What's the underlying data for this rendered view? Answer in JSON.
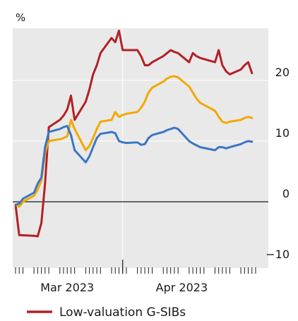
{
  "chart_data": {
    "type": "line",
    "y_unit": "%",
    "ylim": [
      -10,
      30
    ],
    "y_ticks": [
      {
        "value": 20,
        "label": "20"
      },
      {
        "value": 10,
        "label": "10"
      },
      {
        "value": 0,
        "label": "0"
      },
      {
        "value": -10,
        "label": "−10"
      }
    ],
    "x_range": [
      "2023-02-15",
      "2023-04-21"
    ],
    "x_tick_labels": [
      {
        "date": "2023-03-01",
        "label": "Mar 2023"
      },
      {
        "date": "2023-04-01",
        "label": "Apr 2023"
      }
    ],
    "x_divider_date": "2023-03-16",
    "grid": true,
    "legend_position": "bottom",
    "series": [
      {
        "name": "Low-valuation G-SIBs",
        "color": "#b32025",
        "points": [
          [
            "2023-02-15",
            -0.5
          ],
          [
            "2023-02-16",
            -5.5
          ],
          [
            "2023-02-20",
            -5.6
          ],
          [
            "2023-02-21",
            -5.7
          ],
          [
            "2023-02-22",
            -3.5
          ],
          [
            "2023-02-23",
            3.0
          ],
          [
            "2023-02-24",
            12.3
          ],
          [
            "2023-02-27",
            13.5
          ],
          [
            "2023-02-28",
            14.2
          ],
          [
            "2023-03-01",
            15.2
          ],
          [
            "2023-03-02",
            17.5
          ],
          [
            "2023-03-03",
            13.5
          ],
          [
            "2023-03-06",
            16.5
          ],
          [
            "2023-03-07",
            18.5
          ],
          [
            "2023-03-08",
            21.0
          ],
          [
            "2023-03-09",
            22.5
          ],
          [
            "2023-03-10",
            24.5
          ],
          [
            "2023-03-13",
            27.0
          ],
          [
            "2023-03-14",
            26.3
          ],
          [
            "2023-03-15",
            28.2
          ],
          [
            "2023-03-16",
            25.0
          ],
          [
            "2023-03-17",
            25.0
          ],
          [
            "2023-03-20",
            25.0
          ],
          [
            "2023-03-21",
            24.0
          ],
          [
            "2023-03-22",
            22.5
          ],
          [
            "2023-03-23",
            22.5
          ],
          [
            "2023-03-24",
            23.0
          ],
          [
            "2023-03-27",
            24.0
          ],
          [
            "2023-03-28",
            24.5
          ],
          [
            "2023-03-29",
            25.0
          ],
          [
            "2023-03-30",
            24.7
          ],
          [
            "2023-03-31",
            24.5
          ],
          [
            "2023-04-03",
            23.0
          ],
          [
            "2023-04-04",
            24.5
          ],
          [
            "2023-04-05",
            24.0
          ],
          [
            "2023-04-06",
            23.7
          ],
          [
            "2023-04-10",
            23.0
          ],
          [
            "2023-04-11",
            25.0
          ],
          [
            "2023-04-12",
            22.5
          ],
          [
            "2023-04-13",
            21.5
          ],
          [
            "2023-04-14",
            21.0
          ],
          [
            "2023-04-17",
            21.8
          ],
          [
            "2023-04-18",
            22.5
          ],
          [
            "2023-04-19",
            23.0
          ],
          [
            "2023-04-20",
            21.2
          ]
        ]
      },
      {
        "name": "",
        "color": "#f2a900",
        "points": [
          [
            "2023-02-15",
            -0.5
          ],
          [
            "2023-02-16",
            -0.8
          ],
          [
            "2023-02-17",
            0.0
          ],
          [
            "2023-02-20",
            1.0
          ],
          [
            "2023-02-21",
            2.0
          ],
          [
            "2023-02-22",
            3.5
          ],
          [
            "2023-02-23",
            8.0
          ],
          [
            "2023-02-24",
            10.0
          ],
          [
            "2023-02-27",
            10.3
          ],
          [
            "2023-02-28",
            10.5
          ],
          [
            "2023-03-01",
            10.8
          ],
          [
            "2023-03-02",
            13.5
          ],
          [
            "2023-03-03",
            12.0
          ],
          [
            "2023-03-06",
            8.5
          ],
          [
            "2023-03-07",
            9.2
          ],
          [
            "2023-03-08",
            10.5
          ],
          [
            "2023-03-09",
            12.0
          ],
          [
            "2023-03-10",
            13.2
          ],
          [
            "2023-03-13",
            13.5
          ],
          [
            "2023-03-14",
            14.8
          ],
          [
            "2023-03-15",
            14.0
          ],
          [
            "2023-03-16",
            14.3
          ],
          [
            "2023-03-17",
            14.5
          ],
          [
            "2023-03-20",
            14.8
          ],
          [
            "2023-03-21",
            15.5
          ],
          [
            "2023-03-22",
            16.5
          ],
          [
            "2023-03-23",
            18.0
          ],
          [
            "2023-03-24",
            18.8
          ],
          [
            "2023-03-27",
            19.8
          ],
          [
            "2023-03-28",
            20.3
          ],
          [
            "2023-03-29",
            20.6
          ],
          [
            "2023-03-30",
            20.7
          ],
          [
            "2023-03-31",
            20.5
          ],
          [
            "2023-04-03",
            19.0
          ],
          [
            "2023-04-04",
            18.0
          ],
          [
            "2023-04-05",
            17.0
          ],
          [
            "2023-04-06",
            16.3
          ],
          [
            "2023-04-10",
            15.0
          ],
          [
            "2023-04-11",
            14.0
          ],
          [
            "2023-04-12",
            13.2
          ],
          [
            "2023-04-13",
            13.0
          ],
          [
            "2023-04-14",
            13.2
          ],
          [
            "2023-04-17",
            13.5
          ],
          [
            "2023-04-18",
            13.8
          ],
          [
            "2023-04-19",
            14.0
          ],
          [
            "2023-04-20",
            13.8
          ]
        ]
      },
      {
        "name": "",
        "color": "#3a76c4",
        "points": [
          [
            "2023-02-15",
            -0.5
          ],
          [
            "2023-02-16",
            -0.3
          ],
          [
            "2023-02-17",
            0.5
          ],
          [
            "2023-02-20",
            1.5
          ],
          [
            "2023-02-21",
            3.0
          ],
          [
            "2023-02-22",
            4.0
          ],
          [
            "2023-02-23",
            9.0
          ],
          [
            "2023-02-24",
            11.5
          ],
          [
            "2023-02-27",
            12.0
          ],
          [
            "2023-02-28",
            12.3
          ],
          [
            "2023-03-01",
            12.5
          ],
          [
            "2023-03-02",
            11.0
          ],
          [
            "2023-03-03",
            8.5
          ],
          [
            "2023-03-06",
            6.5
          ],
          [
            "2023-03-07",
            7.5
          ],
          [
            "2023-03-08",
            9.0
          ],
          [
            "2023-03-09",
            10.5
          ],
          [
            "2023-03-10",
            11.2
          ],
          [
            "2023-03-13",
            11.5
          ],
          [
            "2023-03-14",
            11.3
          ],
          [
            "2023-03-15",
            10.0
          ],
          [
            "2023-03-16",
            9.8
          ],
          [
            "2023-03-17",
            9.7
          ],
          [
            "2023-03-20",
            9.8
          ],
          [
            "2023-03-21",
            9.4
          ],
          [
            "2023-03-22",
            9.5
          ],
          [
            "2023-03-23",
            10.5
          ],
          [
            "2023-03-24",
            11.0
          ],
          [
            "2023-03-27",
            11.5
          ],
          [
            "2023-03-28",
            11.8
          ],
          [
            "2023-03-29",
            12.0
          ],
          [
            "2023-03-30",
            12.2
          ],
          [
            "2023-03-31",
            12.0
          ],
          [
            "2023-04-03",
            10.0
          ],
          [
            "2023-04-04",
            9.6
          ],
          [
            "2023-04-05",
            9.3
          ],
          [
            "2023-04-06",
            9.0
          ],
          [
            "2023-04-10",
            8.5
          ],
          [
            "2023-04-11",
            9.0
          ],
          [
            "2023-04-12",
            9.0
          ],
          [
            "2023-04-13",
            8.8
          ],
          [
            "2023-04-14",
            9.0
          ],
          [
            "2023-04-17",
            9.5
          ],
          [
            "2023-04-18",
            9.8
          ],
          [
            "2023-04-19",
            10.0
          ],
          [
            "2023-04-20",
            9.9
          ]
        ]
      }
    ]
  }
}
